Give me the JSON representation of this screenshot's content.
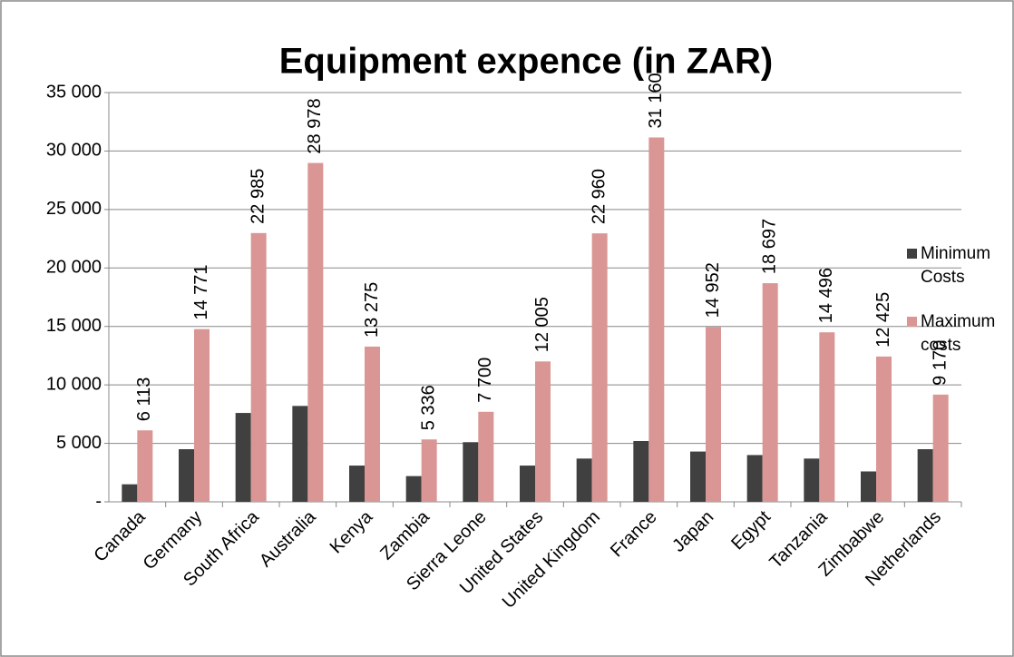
{
  "chart_data": {
    "type": "bar",
    "title": "Equipment expence (in ZAR)",
    "categories": [
      "Canada",
      "Germany",
      "South Africa",
      "Australia",
      "Kenya",
      "Zambia",
      "Sierra Leone",
      "United States",
      "United Kingdom",
      "France",
      "Japan",
      "Egypt",
      "Tanzania",
      "Zimbabwe",
      "Netherlands"
    ],
    "series": [
      {
        "name": "Minimum Costs",
        "color": "#404040",
        "values": [
          1500,
          4500,
          7600,
          8200,
          3100,
          2200,
          5100,
          3100,
          3700,
          5200,
          4300,
          4000,
          3700,
          2600,
          4500
        ]
      },
      {
        "name": "Maximum costs",
        "color": "#d99694",
        "values": [
          6113,
          14771,
          22985,
          28978,
          13275,
          5336,
          7700,
          12005,
          22960,
          31160,
          14952,
          18697,
          14496,
          12425,
          9170
        ],
        "value_labels": [
          "6 113",
          "14 771",
          "22 985",
          "28 978",
          "13 275",
          "5 336",
          "7 700",
          "12 005",
          "22 960",
          "31 160",
          "14 952",
          "18 697",
          "14 496",
          "12 425",
          "9 170"
        ]
      }
    ],
    "ylim": [
      0,
      35000
    ],
    "yticks": [
      {
        "value": 0,
        "label": "-"
      },
      {
        "value": 5000,
        "label": "5 000"
      },
      {
        "value": 10000,
        "label": "10 000"
      },
      {
        "value": 15000,
        "label": "15 000"
      },
      {
        "value": 20000,
        "label": "20 000"
      },
      {
        "value": 25000,
        "label": "25 000"
      },
      {
        "value": 30000,
        "label": "30 000"
      },
      {
        "value": 35000,
        "label": "35 000"
      }
    ],
    "grid": true,
    "legend": "right"
  }
}
